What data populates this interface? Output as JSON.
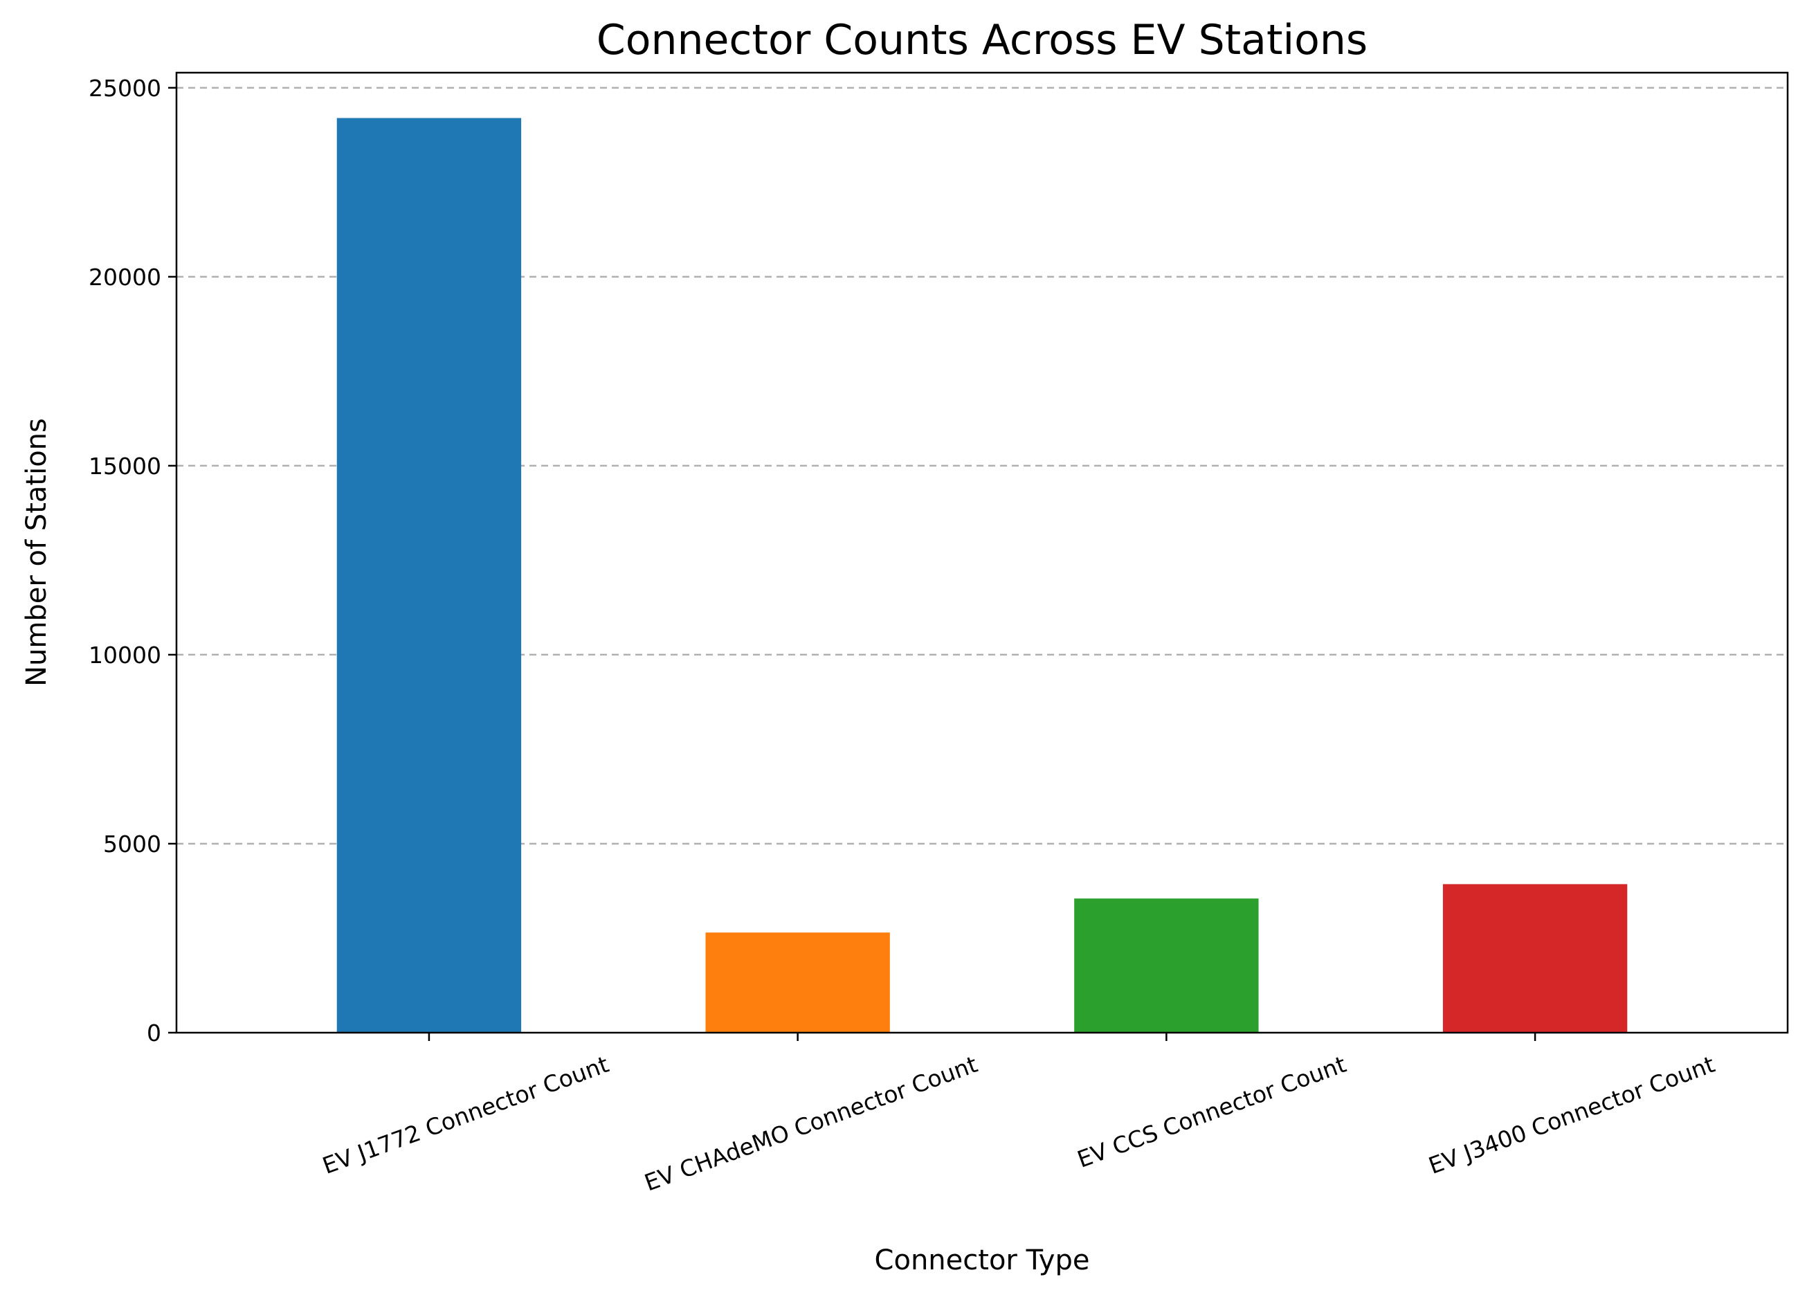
{
  "chart_data": {
    "type": "bar",
    "title": "Connector Counts Across EV Stations",
    "xlabel": "Connector Type",
    "ylabel": "Number of Stations",
    "categories": [
      "EV J1772 Connector Count",
      "EV CHAdeMO Connector Count",
      "EV CCS Connector Count",
      "EV J3400 Connector Count"
    ],
    "values": [
      24200,
      2650,
      3550,
      3930
    ],
    "colors": [
      "#1f77b4",
      "#ff7f0e",
      "#2ca02c",
      "#d62728"
    ],
    "ylim": [
      0,
      25400
    ],
    "yticks": [
      "0",
      "5000",
      "10000",
      "15000",
      "20000",
      "25000"
    ],
    "grid": "y-dashed",
    "legend": "none"
  }
}
